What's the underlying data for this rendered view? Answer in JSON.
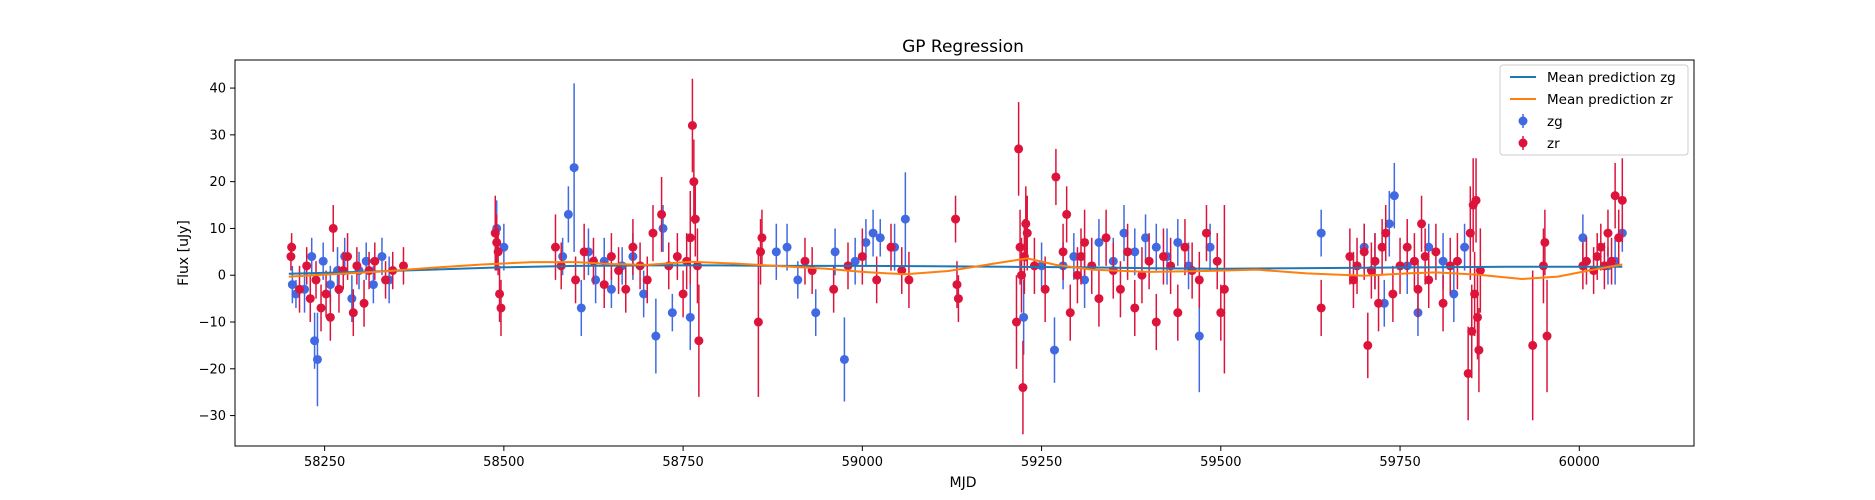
{
  "chart_data": {
    "type": "scatter",
    "title": "GP Regression",
    "xlabel": "MJD",
    "ylabel": "Flux [uJy]",
    "xlim": [
      58125,
      60160
    ],
    "ylim": [
      -36.5,
      46
    ],
    "xticks": [
      58250,
      58500,
      58750,
      59000,
      59250,
      59500,
      59750,
      60000
    ],
    "xtick_labels": [
      "58250",
      "58500",
      "58750",
      "59000",
      "59250",
      "59500",
      "59750",
      "60000"
    ],
    "yticks": [
      -30,
      -20,
      -10,
      0,
      10,
      20,
      30,
      40
    ],
    "ytick_labels": [
      "−30",
      "−20",
      "−10",
      "0",
      "10",
      "20",
      "30",
      "40"
    ],
    "grid": false,
    "legend_placement": "top-right",
    "colors": {
      "zg_points": "#4169e1",
      "zr_points": "#dc143c",
      "zg_line": "#1f77b4",
      "zr_line": "#ff7f0e"
    },
    "legend": [
      {
        "label": "Mean prediction zg",
        "kind": "line",
        "color": "#1f77b4"
      },
      {
        "label": "Mean prediction zr",
        "kind": "line",
        "color": "#ff7f0e"
      },
      {
        "label": "zg",
        "kind": "errorbar",
        "color": "#4169e1"
      },
      {
        "label": "zr",
        "kind": "errorbar",
        "color": "#dc143c"
      }
    ],
    "mean_prediction_zg": {
      "x": [
        58200,
        58300,
        58400,
        58500,
        58600,
        58700,
        58800,
        58900,
        59000,
        59100,
        59200,
        59300,
        59400,
        59500,
        59600,
        59700,
        59800,
        59900,
        60000,
        60060
      ],
      "y": [
        0.3,
        0.7,
        1.2,
        1.7,
        2.0,
        2.1,
        2.1,
        2.0,
        2.0,
        1.9,
        1.8,
        1.7,
        1.5,
        1.4,
        1.5,
        1.6,
        1.7,
        1.8,
        1.8,
        1.8
      ]
    },
    "mean_prediction_zr": {
      "x": [
        58200,
        58260,
        58330,
        58400,
        58470,
        58540,
        58600,
        58650,
        58700,
        58760,
        58820,
        58880,
        58950,
        59000,
        59060,
        59120,
        59180,
        59230,
        59270,
        59320,
        59400,
        59480,
        59550,
        59620,
        59700,
        59760,
        59800,
        59860,
        59920,
        59970,
        60020,
        60060
      ],
      "y": [
        -0.3,
        0.2,
        0.8,
        1.6,
        2.3,
        2.8,
        2.8,
        2.4,
        2.2,
        2.9,
        2.5,
        2.0,
        1.4,
        0.7,
        0.2,
        0.9,
        2.4,
        3.6,
        2.2,
        1.2,
        0.7,
        0.9,
        1.2,
        0.4,
        -0.1,
        0.4,
        0.6,
        0.1,
        -0.8,
        -0.3,
        1.2,
        2.3
      ]
    },
    "series": [
      {
        "name": "zg",
        "x": [
          58205,
          58210,
          58222,
          58232,
          58236,
          58240,
          58248,
          58258,
          58268,
          58278,
          58288,
          58298,
          58308,
          58318,
          58330,
          58340,
          58490,
          58500,
          58582,
          58590,
          58598,
          58608,
          58618,
          58628,
          58640,
          58650,
          58665,
          58680,
          58695,
          58712,
          58722,
          58735,
          58760,
          58880,
          58895,
          58910,
          58935,
          58962,
          58975,
          58990,
          59005,
          59015,
          59025,
          59045,
          59060,
          59225,
          59250,
          59268,
          59280,
          59295,
          59310,
          59330,
          59350,
          59365,
          59380,
          59395,
          59410,
          59425,
          59440,
          59455,
          59470,
          59485,
          59640,
          59700,
          59715,
          59728,
          59735,
          59742,
          59760,
          59775,
          59790,
          59810,
          59825,
          59840,
          60005,
          60040,
          60050,
          60060
        ],
        "y": [
          -2,
          -4,
          -3,
          4,
          -14,
          -18,
          3,
          -2,
          1,
          4,
          -5,
          1,
          3,
          -2,
          4,
          -1,
          10,
          6,
          4,
          13,
          23,
          -7,
          5,
          -1,
          3,
          -3,
          2,
          4,
          -4,
          -13,
          10,
          -8,
          -9,
          5,
          6,
          -1,
          -8,
          5,
          -18,
          3,
          7,
          9,
          8,
          6,
          12,
          -9,
          2,
          -16,
          2,
          4,
          -1,
          7,
          3,
          9,
          5,
          8,
          6,
          4,
          7,
          2,
          -13,
          6,
          9,
          6,
          3,
          -6,
          11,
          17,
          2,
          -8,
          6,
          3,
          -4,
          6,
          8,
          2,
          3,
          9
        ],
        "err": [
          4,
          3,
          5,
          4,
          6,
          10,
          4,
          4,
          5,
          4,
          5,
          4,
          4,
          4,
          4,
          5,
          6,
          5,
          4,
          6,
          18,
          6,
          5,
          5,
          5,
          4,
          4,
          5,
          5,
          8,
          5,
          4,
          7,
          6,
          5,
          4,
          5,
          5,
          9,
          5,
          5,
          5,
          4,
          5,
          10,
          8,
          5,
          7,
          5,
          5,
          6,
          5,
          5,
          6,
          5,
          5,
          5,
          6,
          5,
          5,
          12,
          5,
          5,
          5,
          6,
          5,
          7,
          7,
          6,
          5,
          5,
          6,
          6,
          5,
          5,
          4,
          5,
          4
        ]
      },
      {
        "name": "zr",
        "x": [
          58203,
          58204,
          58215,
          58225,
          58230,
          58238,
          58245,
          58252,
          58258,
          58262,
          58270,
          58276,
          58282,
          58290,
          58295,
          58305,
          58312,
          58320,
          58335,
          58345,
          58360,
          58488,
          58490,
          58492,
          58494,
          58496,
          58572,
          58580,
          58600,
          58612,
          58625,
          58640,
          58650,
          58660,
          58670,
          58680,
          58690,
          58700,
          58708,
          58720,
          58730,
          58742,
          58750,
          58755,
          58760,
          58763,
          58765,
          58767,
          58770,
          58772,
          58855,
          58858,
          58860,
          58920,
          58930,
          58960,
          58980,
          59000,
          59020,
          59040,
          59055,
          59065,
          59130,
          59132,
          59134,
          59215,
          59218,
          59220,
          59222,
          59224,
          59226,
          59228,
          59230,
          59240,
          59255,
          59270,
          59280,
          59285,
          59290,
          59300,
          59305,
          59310,
          59320,
          59330,
          59340,
          59350,
          59360,
          59370,
          59380,
          59390,
          59400,
          59410,
          59420,
          59430,
          59440,
          59450,
          59460,
          59470,
          59480,
          59495,
          59500,
          59505,
          59640,
          59680,
          59685,
          59690,
          59700,
          59705,
          59710,
          59715,
          59720,
          59725,
          59730,
          59740,
          59750,
          59760,
          59770,
          59775,
          59780,
          59785,
          59790,
          59800,
          59810,
          59820,
          59830,
          59845,
          59848,
          59850,
          59852,
          59854,
          59856,
          59858,
          59860,
          59862,
          59935,
          59950,
          59952,
          59955,
          60005,
          60010,
          60020,
          60025,
          60030,
          60035,
          60040,
          60045,
          60050,
          60055,
          60060
        ],
        "y": [
          4,
          6,
          -3,
          2,
          -5,
          -1,
          -7,
          -4,
          -9,
          10,
          -3,
          1,
          4,
          -8,
          2,
          -6,
          1,
          3,
          -1,
          1,
          2,
          9,
          7,
          5,
          -4,
          -7,
          6,
          2,
          -1,
          5,
          3,
          -2,
          4,
          1,
          -3,
          6,
          2,
          -1,
          9,
          13,
          2,
          4,
          -4,
          3,
          8,
          32,
          20,
          12,
          2,
          -14,
          -10,
          5,
          8,
          3,
          1,
          -3,
          2,
          4,
          -1,
          6,
          1,
          -1,
          12,
          -2,
          -5,
          -10,
          27,
          6,
          0,
          -24,
          4,
          11,
          9,
          2,
          -3,
          21,
          5,
          13,
          -8,
          0,
          4,
          7,
          2,
          -5,
          8,
          1,
          -3,
          5,
          -7,
          0,
          3,
          -10,
          4,
          2,
          -8,
          6,
          1,
          -1,
          9,
          3,
          -8,
          -3,
          -7,
          4,
          -1,
          2,
          5,
          -15,
          1,
          3,
          -6,
          6,
          9,
          -4,
          2,
          6,
          3,
          -3,
          11,
          4,
          -1,
          5,
          -6,
          2,
          3,
          -21,
          9,
          -12,
          15,
          -4,
          16,
          -9,
          -16,
          1,
          -15,
          2,
          7,
          -13,
          2,
          3,
          1,
          4,
          6,
          2,
          9,
          3,
          17,
          8,
          16
        ],
        "err": [
          3,
          3,
          5,
          4,
          5,
          4,
          5,
          5,
          5,
          5,
          5,
          4,
          5,
          5,
          4,
          5,
          4,
          4,
          4,
          4,
          4,
          8,
          6,
          5,
          6,
          6,
          7,
          5,
          5,
          6,
          5,
          5,
          5,
          5,
          5,
          6,
          5,
          5,
          6,
          8,
          5,
          5,
          5,
          6,
          10,
          10,
          9,
          8,
          8,
          12,
          16,
          7,
          6,
          5,
          5,
          5,
          5,
          6,
          5,
          5,
          5,
          6,
          5,
          5,
          5,
          10,
          10,
          8,
          8,
          10,
          8,
          8,
          8,
          6,
          7,
          6,
          6,
          6,
          6,
          6,
          6,
          7,
          6,
          6,
          6,
          6,
          6,
          6,
          6,
          6,
          6,
          6,
          6,
          6,
          6,
          6,
          6,
          6,
          6,
          6,
          6,
          18,
          6,
          6,
          6,
          6,
          6,
          7,
          6,
          6,
          6,
          6,
          6,
          6,
          6,
          6,
          6,
          6,
          6,
          6,
          6,
          6,
          6,
          6,
          6,
          10,
          10,
          10,
          10,
          9,
          9,
          9,
          9,
          9,
          16,
          8,
          7,
          12,
          5,
          5,
          5,
          5,
          5,
          5,
          5,
          5,
          7,
          6,
          9
        ]
      }
    ]
  }
}
